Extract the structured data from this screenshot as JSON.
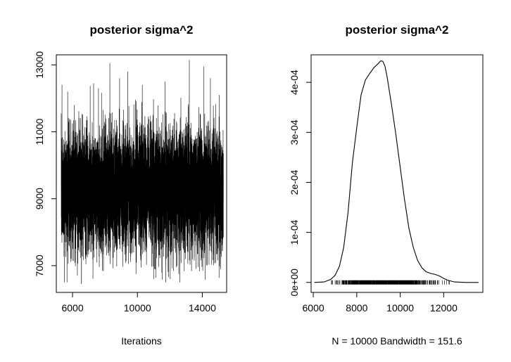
{
  "chart_data": [
    {
      "type": "line",
      "title": "posterior sigma^2",
      "xlabel": "Iterations",
      "ylabel": "",
      "xlim": [
        5000,
        15500
      ],
      "ylim": [
        6200,
        13300
      ],
      "xticks": [
        6000,
        10000,
        14000
      ],
      "xtick_labels": [
        "6000",
        "10000",
        "14000"
      ],
      "yticks": [
        7000,
        9000,
        11000,
        13000
      ],
      "ytick_labels": [
        "7000",
        "9000",
        "11000",
        "13000"
      ],
      "series": [
        {
          "x_range": [
            5301,
            15300
          ],
          "n": 10000,
          "mean": 9300,
          "typical_range": [
            7700,
            11100
          ],
          "min": 6500,
          "max": 13200,
          "spikes": [
            {
              "x": 5350,
              "y": 12400
            },
            {
              "x": 5700,
              "y": 12200
            },
            {
              "x": 6300,
              "y": 6700
            },
            {
              "x": 6550,
              "y": 6450
            },
            {
              "x": 7300,
              "y": 12450
            },
            {
              "x": 7600,
              "y": 12300
            },
            {
              "x": 8300,
              "y": 13050
            },
            {
              "x": 8900,
              "y": 12600
            },
            {
              "x": 9400,
              "y": 12800
            },
            {
              "x": 10300,
              "y": 12400
            },
            {
              "x": 11000,
              "y": 6600
            },
            {
              "x": 11700,
              "y": 12500
            },
            {
              "x": 13200,
              "y": 13150
            },
            {
              "x": 13500,
              "y": 7150
            },
            {
              "x": 14100,
              "y": 12950
            },
            {
              "x": 14500,
              "y": 12600
            },
            {
              "x": 15050,
              "y": 12100
            }
          ]
        }
      ],
      "grid": false,
      "legend": "none"
    },
    {
      "type": "line",
      "title": "posterior sigma^2",
      "xlabel": "N = 10000   Bandwidth = 151.6",
      "ylabel": "",
      "xlim": [
        5900,
        13800
      ],
      "ylim": [
        -2e-05,
        0.000455
      ],
      "xticks": [
        6000,
        8000,
        10000,
        12000
      ],
      "xtick_labels": [
        "6000",
        "8000",
        "10000",
        "12000"
      ],
      "yticks": [
        0,
        0.0001,
        0.0002,
        0.0003,
        0.0004
      ],
      "ytick_labels": [
        "0e+00",
        "1e-04",
        "2e-04",
        "3e-04",
        "4e-04"
      ],
      "series": [
        {
          "x": [
            6050,
            6500,
            6800,
            7000,
            7200,
            7400,
            7600,
            7800,
            8000,
            8200,
            8400,
            8600,
            8800,
            9000,
            9100,
            9200,
            9300,
            9400,
            9600,
            9800,
            10000,
            10200,
            10400,
            10600,
            10800,
            11000,
            11200,
            11400,
            11600,
            11800,
            12000,
            12200,
            12500,
            13000,
            13600
          ],
          "y": [
            0,
            1e-06,
            6e-06,
            1.4e-05,
            3.2e-05,
            7e-05,
            0.00014,
            0.00024,
            0.00031,
            0.000375,
            0.000405,
            0.000418,
            0.00043,
            0.000438,
            0.000443,
            0.000442,
            0.000432,
            0.00041,
            0.000355,
            0.000295,
            0.00023,
            0.000165,
            0.000108,
            7e-05,
            4.4e-05,
            2.9e-05,
            2.1e-05,
            1.8e-05,
            1.6e-05,
            1.3e-05,
            8e-06,
            4e-06,
            1e-06,
            0,
            0
          ]
        }
      ],
      "rug": {
        "range": [
          6700,
          12700
        ],
        "dense_range": [
          7200,
          11400
        ]
      },
      "grid": false,
      "legend": "none"
    }
  ]
}
